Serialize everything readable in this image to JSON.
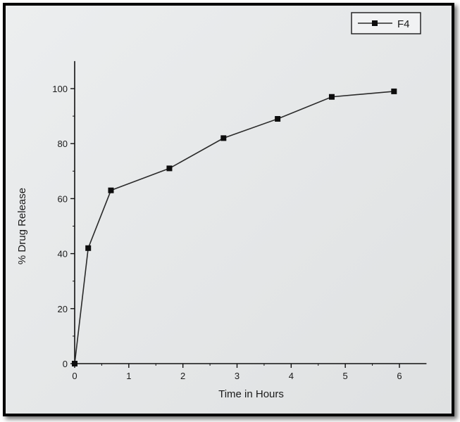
{
  "chart_data": {
    "type": "line",
    "title": "",
    "xlabel": "Time in Hours",
    "ylabel": "% Drug Release",
    "xlim": [
      0,
      6.5
    ],
    "ylim": [
      0,
      110
    ],
    "xticks": [
      0,
      1,
      2,
      3,
      4,
      5,
      6
    ],
    "yticks": [
      0,
      20,
      40,
      60,
      80,
      100
    ],
    "grid": false,
    "legend_position": "top-right",
    "series": [
      {
        "name": "F4",
        "color": "#2a2a2a",
        "marker": "square",
        "x": [
          0,
          0.25,
          0.67,
          1.75,
          2.75,
          3.75,
          4.75,
          5.9
        ],
        "y": [
          0,
          42,
          63,
          71,
          82,
          89,
          97,
          99
        ]
      }
    ]
  }
}
